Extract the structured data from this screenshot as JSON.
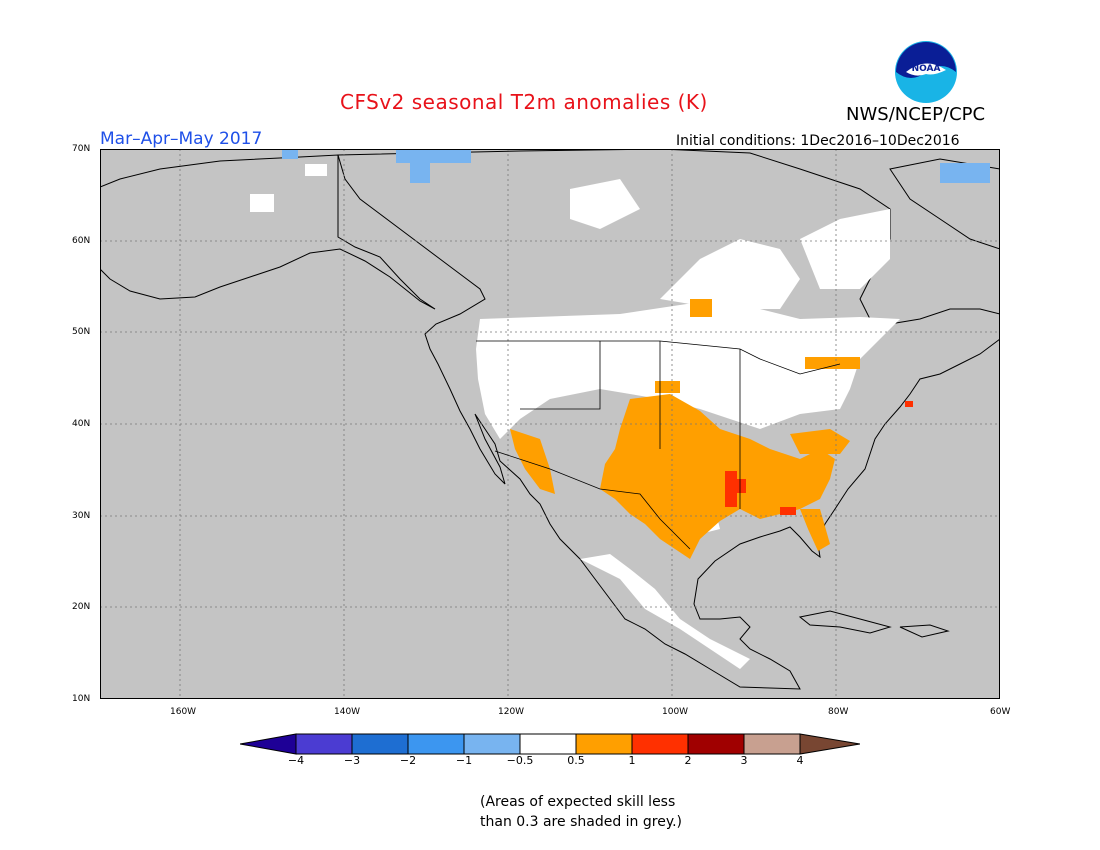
{
  "header": {
    "title": "CFSv2 seasonal T2m anomalies (K)",
    "agency": "NWS/NCEP/CPC",
    "period": "Mar–Apr–May 2017",
    "initial_conditions": "Initial conditions: 1Dec2016–10Dec2016",
    "logo_text": "NOAA"
  },
  "map": {
    "region": "North America",
    "latitude_labels": [
      "70N",
      "60N",
      "50N",
      "40N",
      "30N",
      "20N",
      "10N"
    ],
    "longitude_labels": [
      "160W",
      "140W",
      "120W",
      "100W",
      "80W",
      "60W"
    ],
    "legend_colors": {
      "land_low_skill": "#c4c4c4",
      "neutral": "#ffffff",
      "warm_0_5_to_1": "#ff9f00",
      "warm_1_to_2": "#ff3000",
      "cold_minus1_to_minus0_5": "#78b4f0"
    }
  },
  "colorbar": {
    "ticks": [
      "−4",
      "−3",
      "−2",
      "−1",
      "−0.5",
      "0.5",
      "1",
      "2",
      "3",
      "4"
    ],
    "colors": [
      "#1e0096",
      "#4b3cd2",
      "#1e6ed2",
      "#3c96f0",
      "#78b4f0",
      "#ffffff",
      "#ff9f00",
      "#ff3000",
      "#a00000",
      "#c8a090",
      "#784632"
    ]
  },
  "note": {
    "line1": "(Areas of expected skill less",
    "line2": "than 0.3 are shaded in grey.)"
  }
}
